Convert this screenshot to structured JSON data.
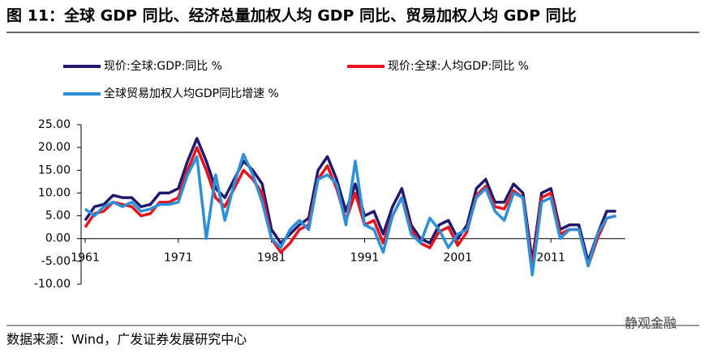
{
  "chart_data": {
    "type": "line",
    "title": "图 11：全球 GDP 同比、经济总量加权人均 GDP 同比、贸易加权人均 GDP 同比",
    "source": "数据来源：Wind，广发证券发展研究中心",
    "watermark": "静观金融",
    "x": [
      1961,
      1962,
      1963,
      1964,
      1965,
      1966,
      1967,
      1968,
      1969,
      1970,
      1971,
      1972,
      1973,
      1974,
      1975,
      1976,
      1977,
      1978,
      1979,
      1980,
      1981,
      1982,
      1983,
      1984,
      1985,
      1986,
      1987,
      1988,
      1989,
      1990,
      1991,
      1992,
      1993,
      1994,
      1995,
      1996,
      1997,
      1998,
      1999,
      2000,
      2001,
      2002,
      2003,
      2004,
      2005,
      2006,
      2007,
      2008,
      2009,
      2010,
      2011,
      2012,
      2013,
      2014,
      2015,
      2016,
      2017,
      2018
    ],
    "series": [
      {
        "name": "现价:全球:GDP:同比 %",
        "color": "#1f1a6e",
        "values": [
          4,
          7,
          7.5,
          9.5,
          9,
          9,
          7,
          7.5,
          10,
          10,
          11,
          17,
          22,
          17,
          11,
          9,
          13,
          17,
          15,
          12,
          2,
          -1,
          1,
          3,
          4.5,
          15,
          18,
          13,
          6,
          12,
          5,
          6,
          1,
          7,
          11,
          3,
          0,
          -1,
          3,
          4,
          0,
          3,
          11,
          13,
          8,
          8,
          12,
          10,
          -5,
          10,
          11,
          2,
          3,
          3,
          -5,
          1,
          6,
          6
        ]
      },
      {
        "name": "现价:全球:人均GDP:同比 %",
        "color": "#e8141c",
        "values": [
          2.5,
          5.5,
          6,
          8,
          7.5,
          7,
          5,
          5.5,
          8,
          8,
          9,
          15,
          20,
          15,
          9,
          7,
          11,
          15,
          13,
          10,
          0,
          -3,
          -1,
          2,
          3,
          13,
          16,
          11,
          4,
          10,
          3,
          4,
          -1,
          5,
          9,
          2,
          -1,
          -2,
          1.5,
          2.5,
          -1.5,
          1.5,
          9.5,
          11.5,
          7,
          6.5,
          10.5,
          9,
          -6.5,
          9,
          10,
          1,
          2,
          2,
          -6,
          0,
          4.5,
          5
        ]
      },
      {
        "name": "全球贸易加权人均GDP同比增速 %",
        "color": "#2e8fd6",
        "values": [
          6.5,
          5,
          7,
          8,
          7,
          8,
          6,
          6.5,
          7.5,
          7.5,
          8,
          14,
          18,
          0,
          14,
          4,
          12,
          18.5,
          14,
          8,
          0,
          -2,
          2,
          4,
          2,
          13,
          14,
          12,
          3,
          17,
          3,
          2,
          -3,
          5,
          9,
          1,
          -1,
          4.5,
          2,
          -2,
          1,
          2,
          9,
          11,
          6,
          4,
          10,
          9,
          -8,
          8,
          9,
          0,
          2,
          2,
          -6,
          1,
          4.5,
          5
        ]
      }
    ],
    "xlim": [
      1961,
      2019
    ],
    "xticks": [
      1961,
      1971,
      1981,
      1991,
      2001,
      2011
    ],
    "ylim": [
      -10,
      25
    ],
    "yticks": [
      {
        "value": 25,
        "label": "25.00"
      },
      {
        "value": 20,
        "label": "20.00"
      },
      {
        "value": 15,
        "label": "15.00"
      },
      {
        "value": 10,
        "label": "10.00"
      },
      {
        "value": 5,
        "label": "5.00"
      },
      {
        "value": 0,
        "label": "0.00"
      },
      {
        "value": -5,
        "label": "-5.00"
      },
      {
        "value": -10,
        "label": "-10.00"
      }
    ],
    "grid": false
  }
}
